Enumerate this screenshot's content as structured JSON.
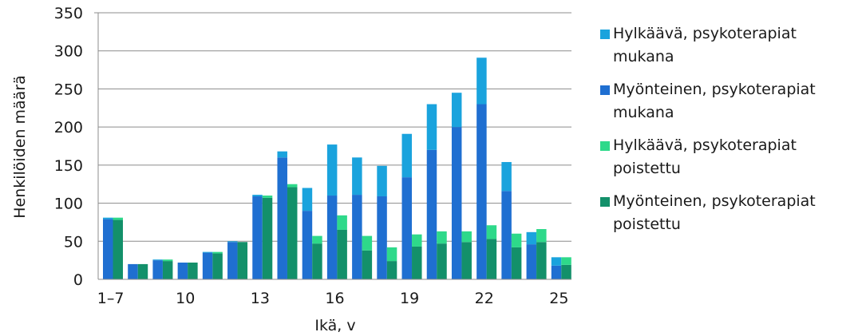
{
  "chart_data": {
    "type": "bar",
    "title": "",
    "xlabel": "Ikä, v",
    "ylabel": "Henkilöiden määrä",
    "ylim": [
      0,
      350
    ],
    "yticks": [
      "0",
      "50",
      "100",
      "150",
      "200",
      "250",
      "300",
      "350"
    ],
    "categories": [
      "1–7",
      "8",
      "9",
      "10",
      "11",
      "12",
      "13",
      "14",
      "15",
      "16",
      "17",
      "18",
      "19",
      "20",
      "21",
      "22",
      "23",
      "24",
      "25"
    ],
    "x_tick_labels": [
      {
        "index": 0,
        "label": "1–7"
      },
      {
        "index": 3,
        "label": "10"
      },
      {
        "index": 6,
        "label": "13"
      },
      {
        "index": 9,
        "label": "16"
      },
      {
        "index": 12,
        "label": "19"
      },
      {
        "index": 15,
        "label": "22"
      },
      {
        "index": 18,
        "label": "25"
      }
    ],
    "grid": "horizontal",
    "legend_position": "right",
    "stacks": [
      {
        "stack": "psykoterapiat mukana",
        "series": [
          {
            "name": "Myönteinen, psykoterapiat mukana",
            "color": "#1f6fd1",
            "values": [
              79,
              20,
              25,
              22,
              35,
              49,
              109,
              160,
              90,
              110,
              111,
              109,
              134,
              170,
              200,
              230,
              116,
              46,
              18
            ]
          },
          {
            "name": "Hylkäävä, psykoterapiat mukana",
            "color": "#1aa3dd",
            "values": [
              2,
              0,
              1,
              0,
              1,
              1,
              2,
              8,
              30,
              67,
              49,
              40,
              57,
              60,
              45,
              61,
              38,
              16,
              11
            ]
          }
        ]
      },
      {
        "stack": "psykoterapiat poistettu",
        "series": [
          {
            "name": "Myönteinen, psykoterapiat poistettu",
            "color": "#13906a",
            "values": [
              78,
              20,
              24,
              22,
              34,
              49,
              107,
              121,
              47,
              65,
              38,
              24,
              43,
              47,
              49,
              53,
              42,
              49,
              19
            ]
          },
          {
            "name": "Hylkäävä, psykoterapiat poistettu",
            "color": "#2ed98a",
            "values": [
              3,
              0,
              2,
              0,
              2,
              0,
              3,
              4,
              10,
              19,
              19,
              18,
              16,
              16,
              14,
              18,
              18,
              17,
              10
            ]
          }
        ]
      }
    ],
    "legend": [
      {
        "label": "Hylkäävä, psykoterapiat\nmukana",
        "color": "#1aa3dd"
      },
      {
        "label": "Myönteinen, psykoterapiat\nmukana",
        "color": "#1f6fd1"
      },
      {
        "label": "Hylkäävä, psykoterapiat\npoistettu",
        "color": "#2ed98a"
      },
      {
        "label": "Myönteinen, psykoterapiat\npoistettu",
        "color": "#13906a"
      }
    ]
  }
}
